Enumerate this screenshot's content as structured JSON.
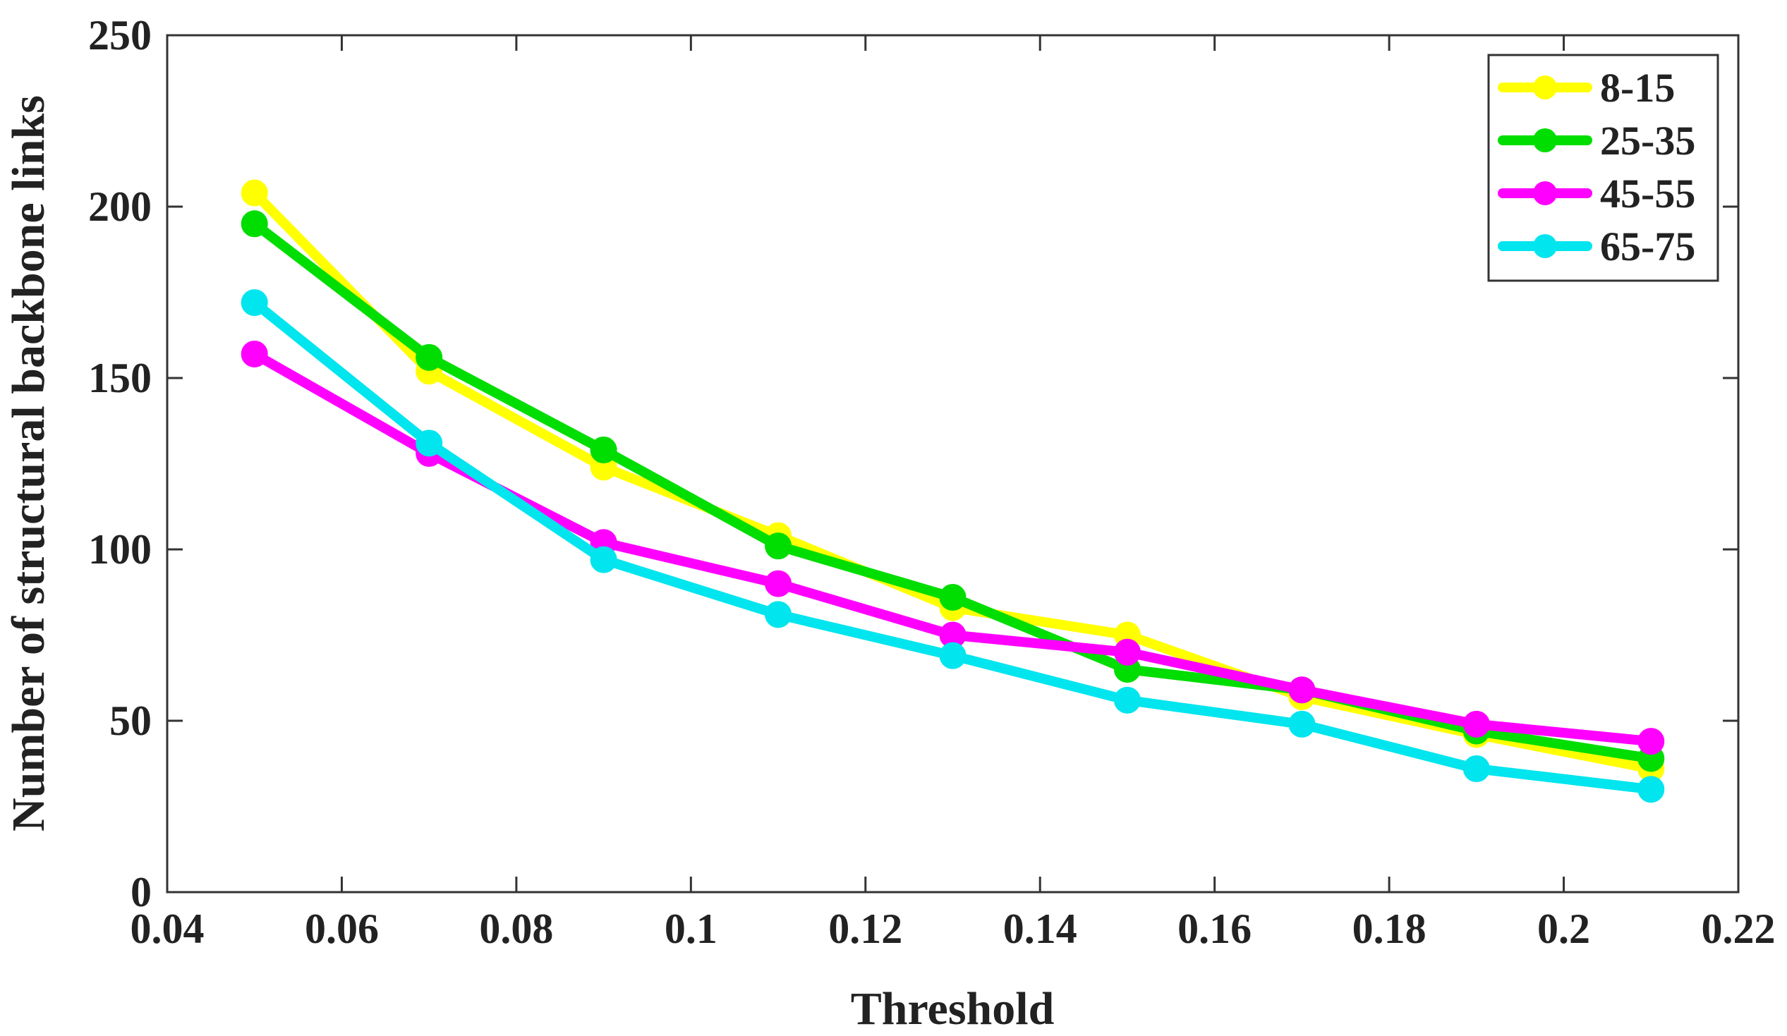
{
  "chart_data": {
    "type": "line",
    "title": "",
    "xlabel": "Threshold",
    "ylabel": "Number of structural backbone links",
    "xlim": [
      0.04,
      0.22
    ],
    "ylim": [
      0,
      250
    ],
    "xticks": [
      0.04,
      0.06,
      0.08,
      0.1,
      0.12,
      0.14,
      0.16,
      0.18,
      0.2,
      0.22
    ],
    "xtick_labels": [
      "0.04",
      "0.06",
      "0.08",
      "0.1",
      "0.12",
      "0.14",
      "0.16",
      "0.18",
      "0.2",
      "0.22"
    ],
    "yticks": [
      0,
      50,
      100,
      150,
      200,
      250
    ],
    "ytick_labels": [
      "0",
      "50",
      "100",
      "150",
      "200",
      "250"
    ],
    "grid": false,
    "legend_position": "top-right",
    "x": [
      0.05,
      0.07,
      0.09,
      0.11,
      0.13,
      0.15,
      0.17,
      0.19,
      0.21
    ],
    "series": [
      {
        "name": "8-15",
        "color": "#ffff00",
        "values": [
          204,
          152,
          124,
          104,
          83,
          75,
          57,
          46,
          36
        ]
      },
      {
        "name": "25-35",
        "color": "#00dd00",
        "values": [
          195,
          156,
          129,
          101,
          86,
          65,
          59,
          47,
          39
        ]
      },
      {
        "name": "45-55",
        "color": "#ff00ff",
        "values": [
          157,
          128,
          102,
          90,
          75,
          70,
          59,
          49,
          44
        ]
      },
      {
        "name": "65-75",
        "color": "#00e5ee",
        "values": [
          172,
          131,
          97,
          81,
          69,
          56,
          49,
          36,
          30
        ]
      }
    ]
  }
}
